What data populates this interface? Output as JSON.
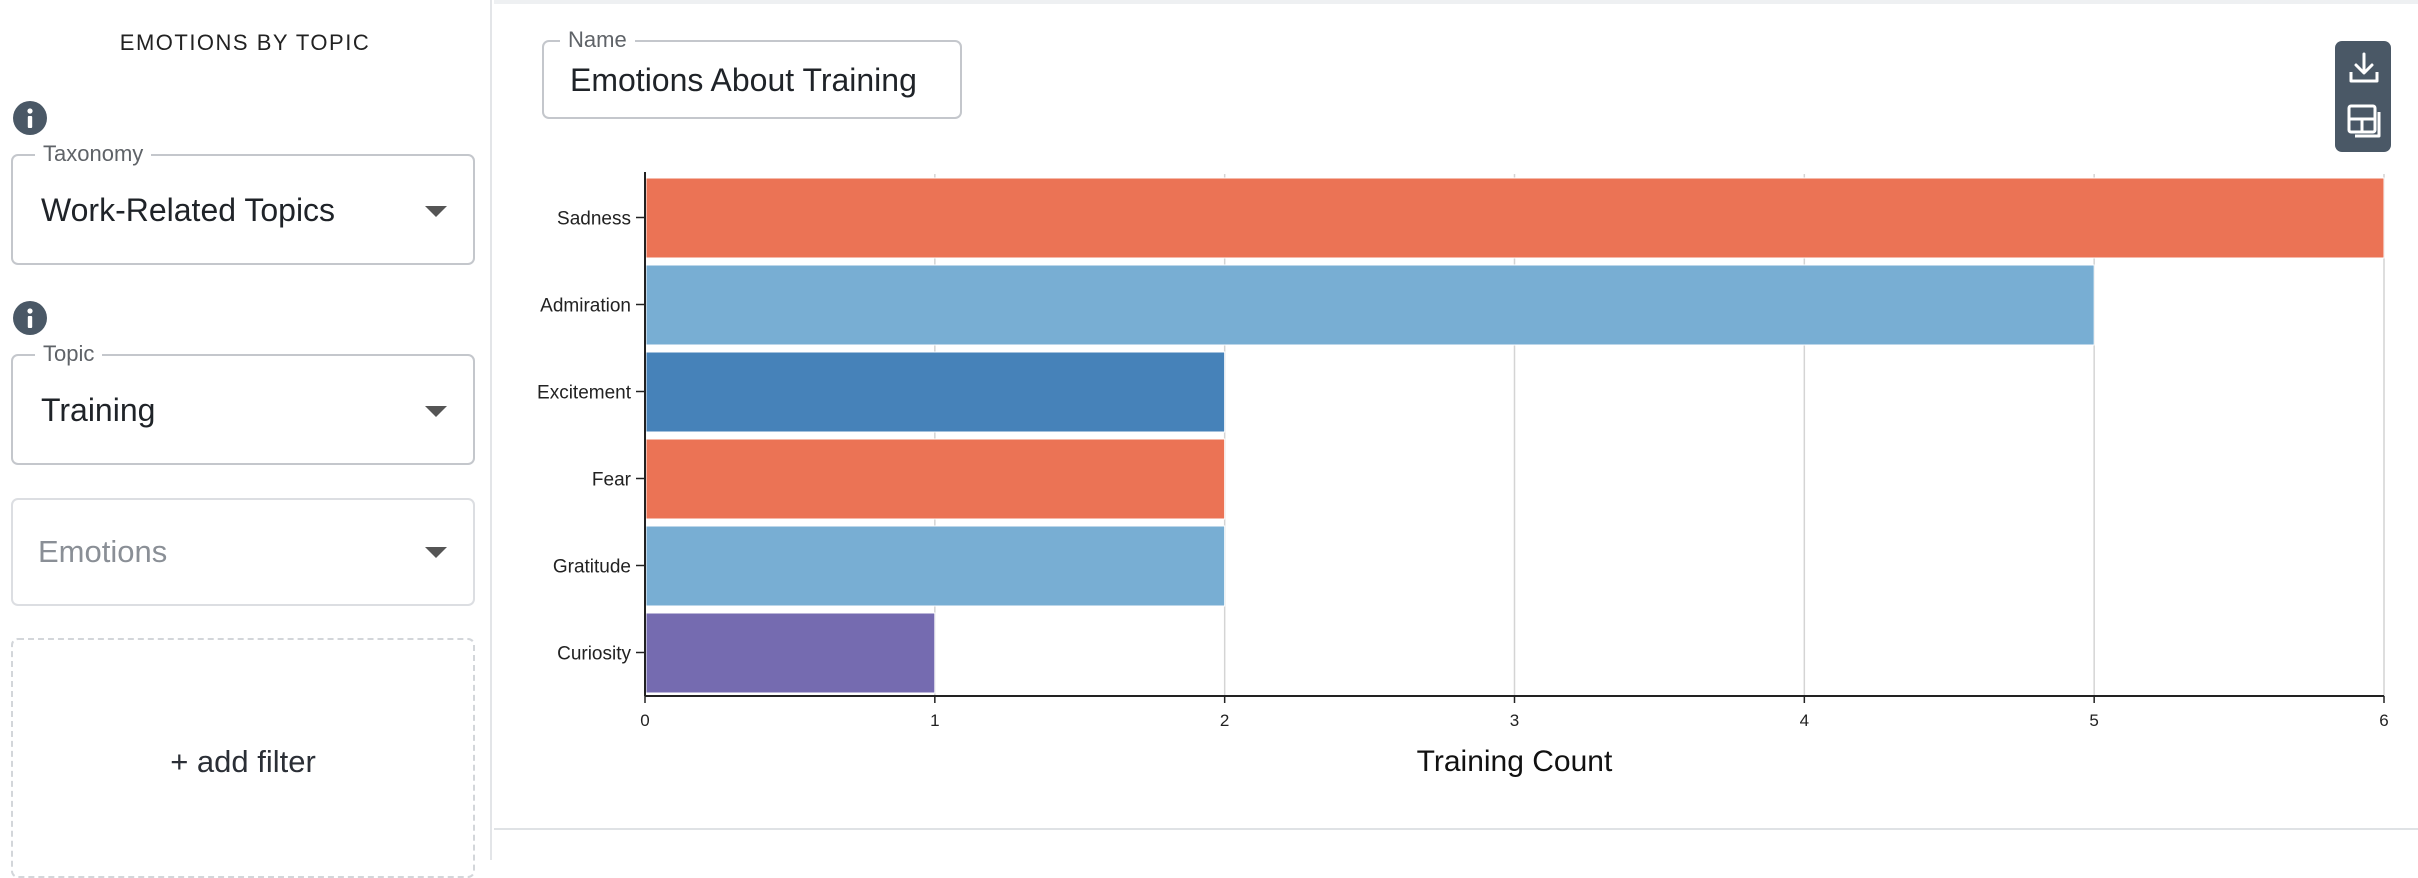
{
  "sidebar": {
    "title": "EMOTIONS BY TOPIC",
    "taxonomy": {
      "legend": "Taxonomy",
      "value": "Work-Related Topics"
    },
    "topic": {
      "legend": "Topic",
      "value": "Training"
    },
    "emotions": {
      "placeholder": "Emotions"
    },
    "add_filter_label": "+ add filter"
  },
  "main": {
    "name_field": {
      "legend": "Name",
      "value": "Emotions About Training"
    },
    "toolbar": [
      "download-icon",
      "layout-icon"
    ]
  },
  "colors": {
    "sadness": "#eb7355",
    "admiration": "#78aed3",
    "excitement": "#4682b9",
    "fear": "#eb7355",
    "gratitude": "#78aed3",
    "curiosity": "#756bb0"
  },
  "chart_data": {
    "type": "bar",
    "orientation": "horizontal",
    "categories": [
      "Sadness",
      "Admiration",
      "Excitement",
      "Fear",
      "Gratitude",
      "Curiosity"
    ],
    "values": [
      6,
      5,
      2,
      2,
      2,
      1
    ],
    "xlabel": "Training Count",
    "xlim": [
      0,
      6
    ],
    "xticks": [
      "0",
      "1",
      "2",
      "3",
      "4",
      "5",
      "6"
    ],
    "grid": true
  }
}
